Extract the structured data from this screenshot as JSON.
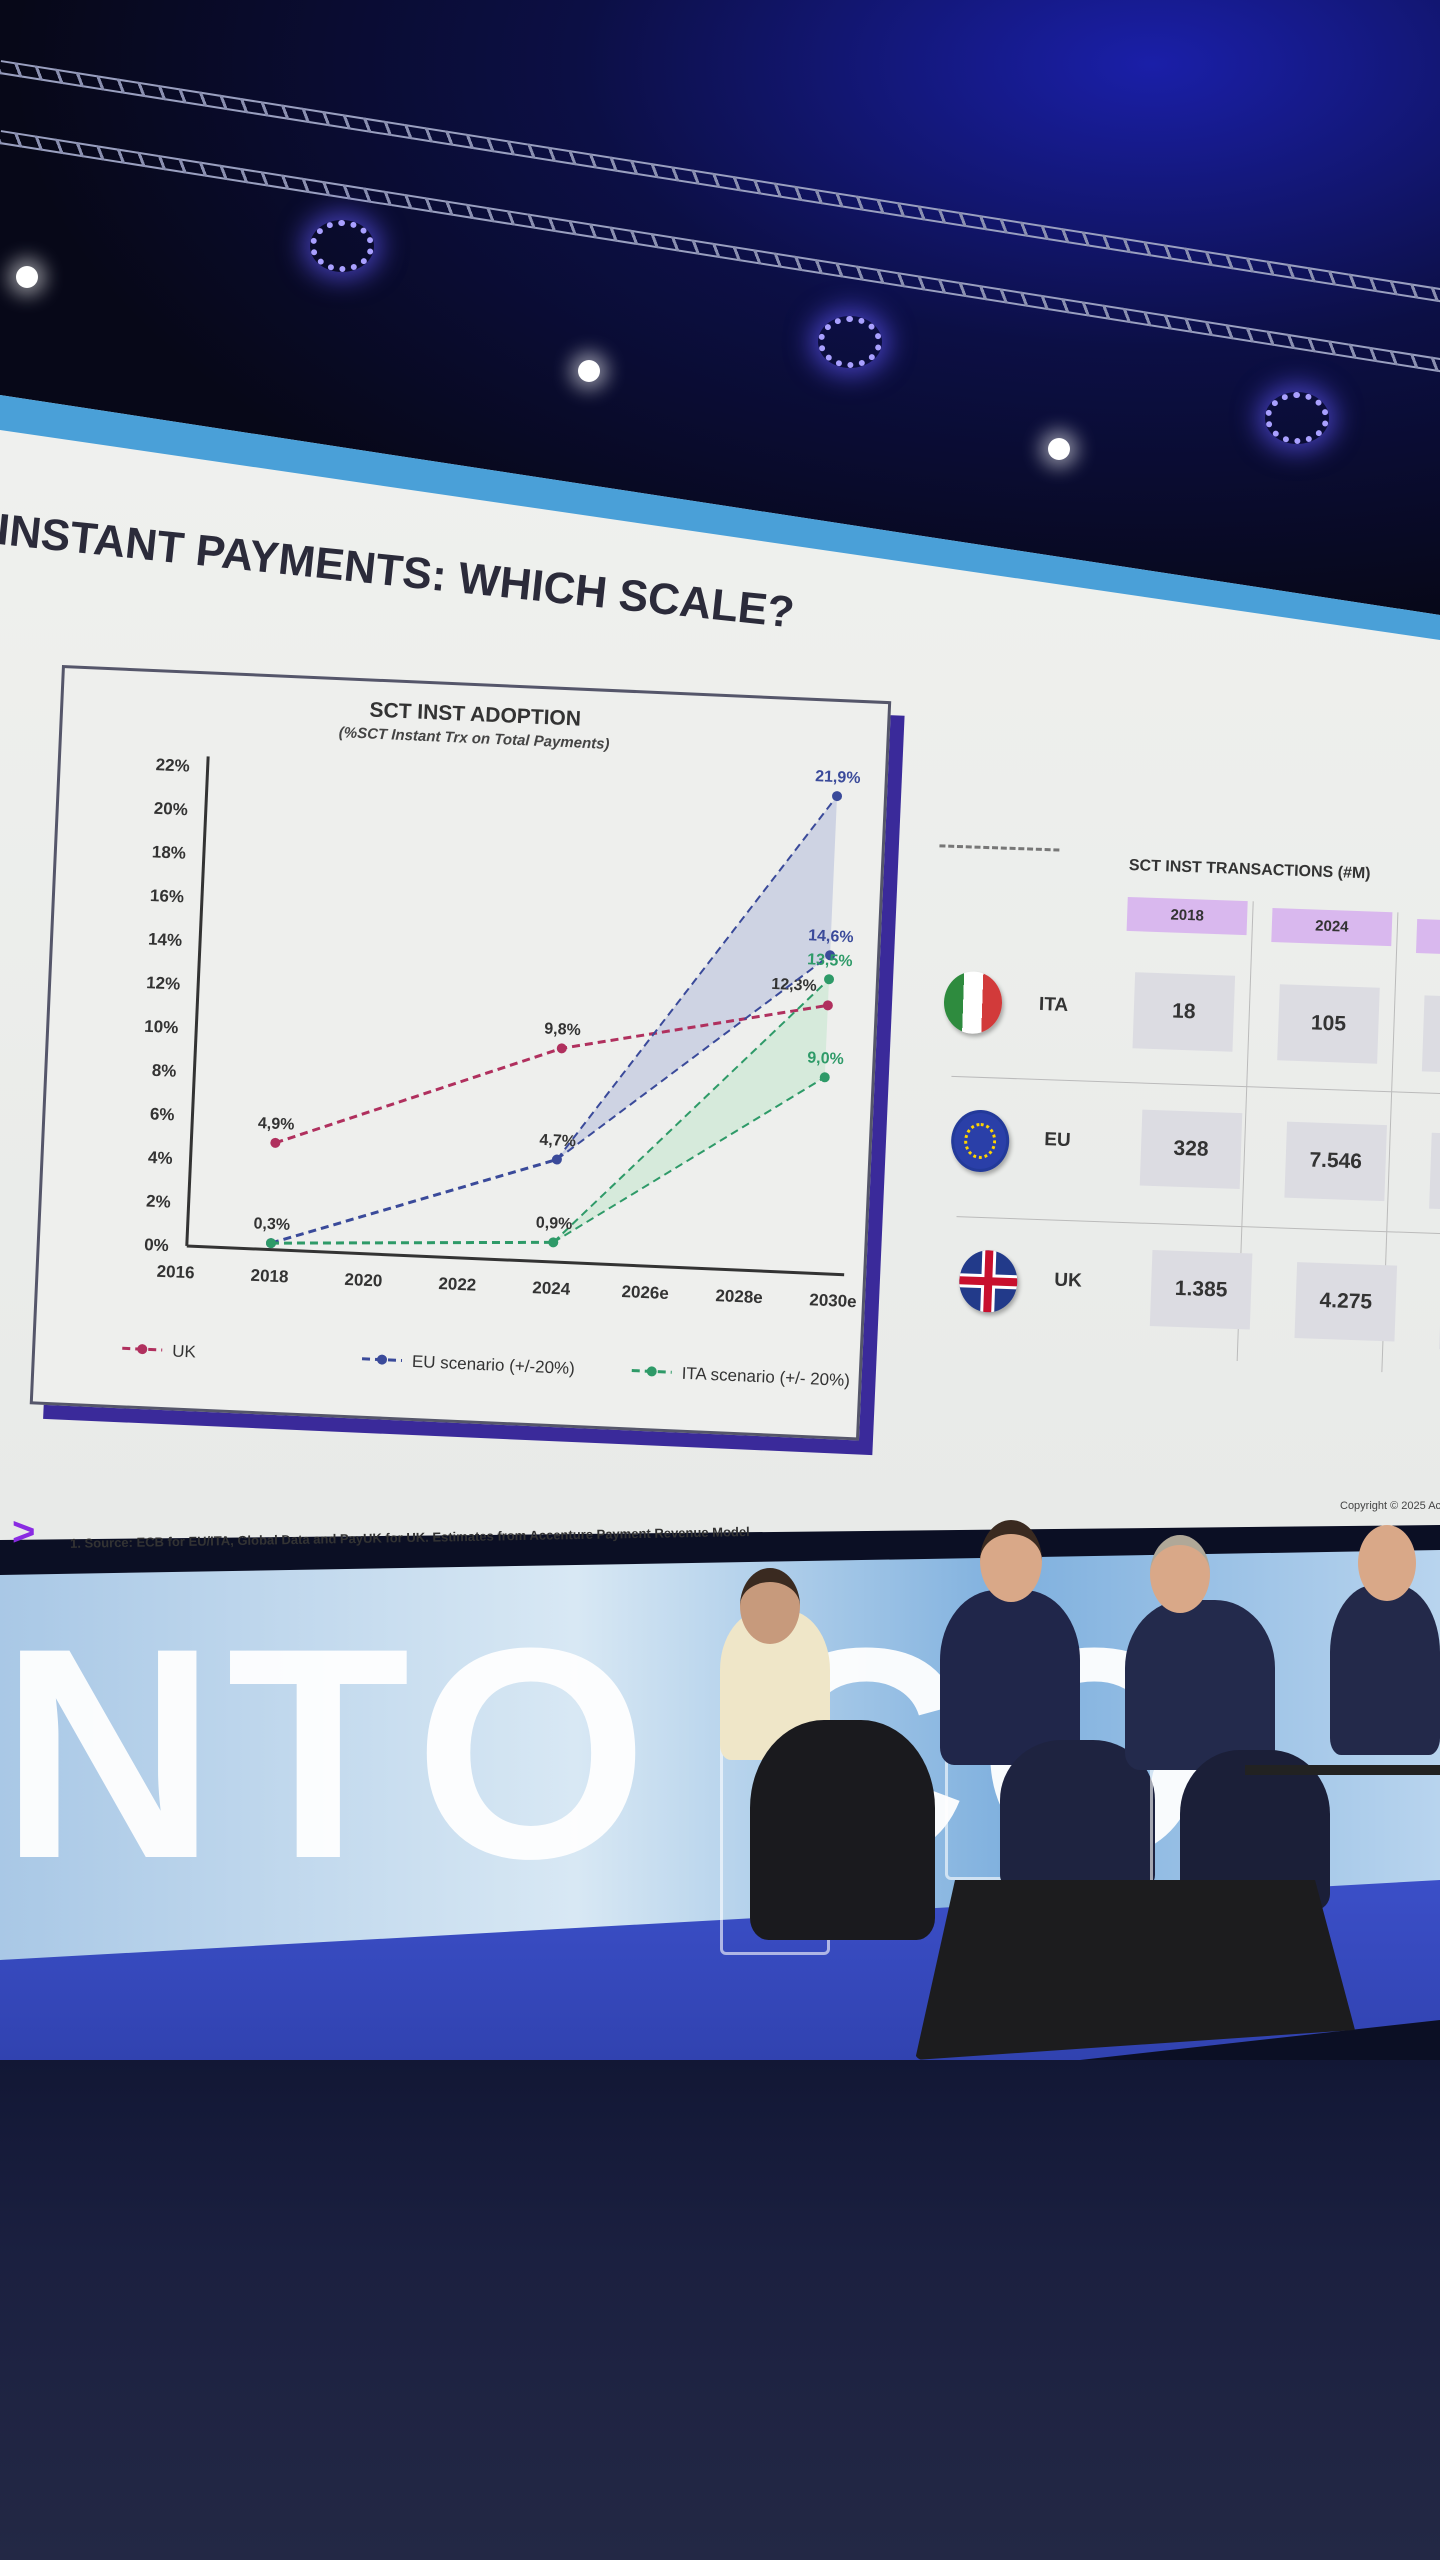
{
  "slide": {
    "title": "INSTANT PAYMENTS: WHICH SCALE?",
    "source_note": "1. Source: ECB for EU/ITA, Global Data and PayUK for UK. Estimates from Accenture Payment Revenue Model",
    "copyright": "Copyright © 2025 Ac",
    "logo_mark": ">"
  },
  "backdrop_text": "NTO CO",
  "chart_data": {
    "type": "line",
    "title": "SCT INST ADOPTION",
    "subtitle": "(%SCT Instant Trx on Total Payments)",
    "categories": [
      "2016",
      "2018",
      "2020",
      "2022",
      "2024",
      "2026e",
      "2028e",
      "2030e"
    ],
    "y_ticks": [
      "0%",
      "2%",
      "4%",
      "6%",
      "8%",
      "10%",
      "12%",
      "14%",
      "16%",
      "18%",
      "20%",
      "22%"
    ],
    "ylim": [
      0,
      22
    ],
    "grid": false,
    "legend_position": "bottom",
    "series": [
      {
        "name": "UK",
        "color": "#b0305e",
        "points": [
          [
            "2018",
            4.9
          ],
          [
            "2024",
            9.8
          ],
          [
            "2030e",
            12.3
          ]
        ],
        "labels": [
          "4,9%",
          "9,8%",
          "12,3%"
        ]
      },
      {
        "name": "EU scenario (+/-20%)",
        "color": "#3a4a9a",
        "fill": "#c6cce0",
        "points": [
          [
            "2018",
            0.3
          ],
          [
            "2024",
            4.7
          ]
        ],
        "range_end": {
          "x": "2030e",
          "high": 21.9,
          "low": 14.6
        },
        "labels": [
          "0,3%",
          "4,7%",
          "21,9%",
          "14,6%"
        ]
      },
      {
        "name": "ITA scenario (+/- 20%)",
        "color": "#2e9a68",
        "fill": "#cfe8d6",
        "points": [
          [
            "2018",
            0.3
          ],
          [
            "2024",
            0.9
          ]
        ],
        "range_end": {
          "x": "2030e",
          "high": 13.5,
          "low": 9.0
        },
        "labels": [
          "",
          "0,9%",
          "13,5%",
          "9,0%"
        ]
      }
    ]
  },
  "table": {
    "title": "SCT INST TRANSACTIONS (#M)",
    "columns": [
      "2018",
      "2024",
      ""
    ],
    "rows": [
      {
        "label": "ITA",
        "flag": "italy-flag",
        "values": [
          "18",
          "105"
        ]
      },
      {
        "label": "EU",
        "flag": "eu-flag",
        "values": [
          "328",
          "7.546"
        ]
      },
      {
        "label": "UK",
        "flag": "uk-flag",
        "values": [
          "1.385",
          "4.275"
        ]
      }
    ]
  },
  "colors": {
    "accent": "#8a2be2",
    "frame_shadow": "#3a2a9a",
    "header_cell": "#d9b8ee",
    "stage_blue": "#3b4fc8"
  }
}
